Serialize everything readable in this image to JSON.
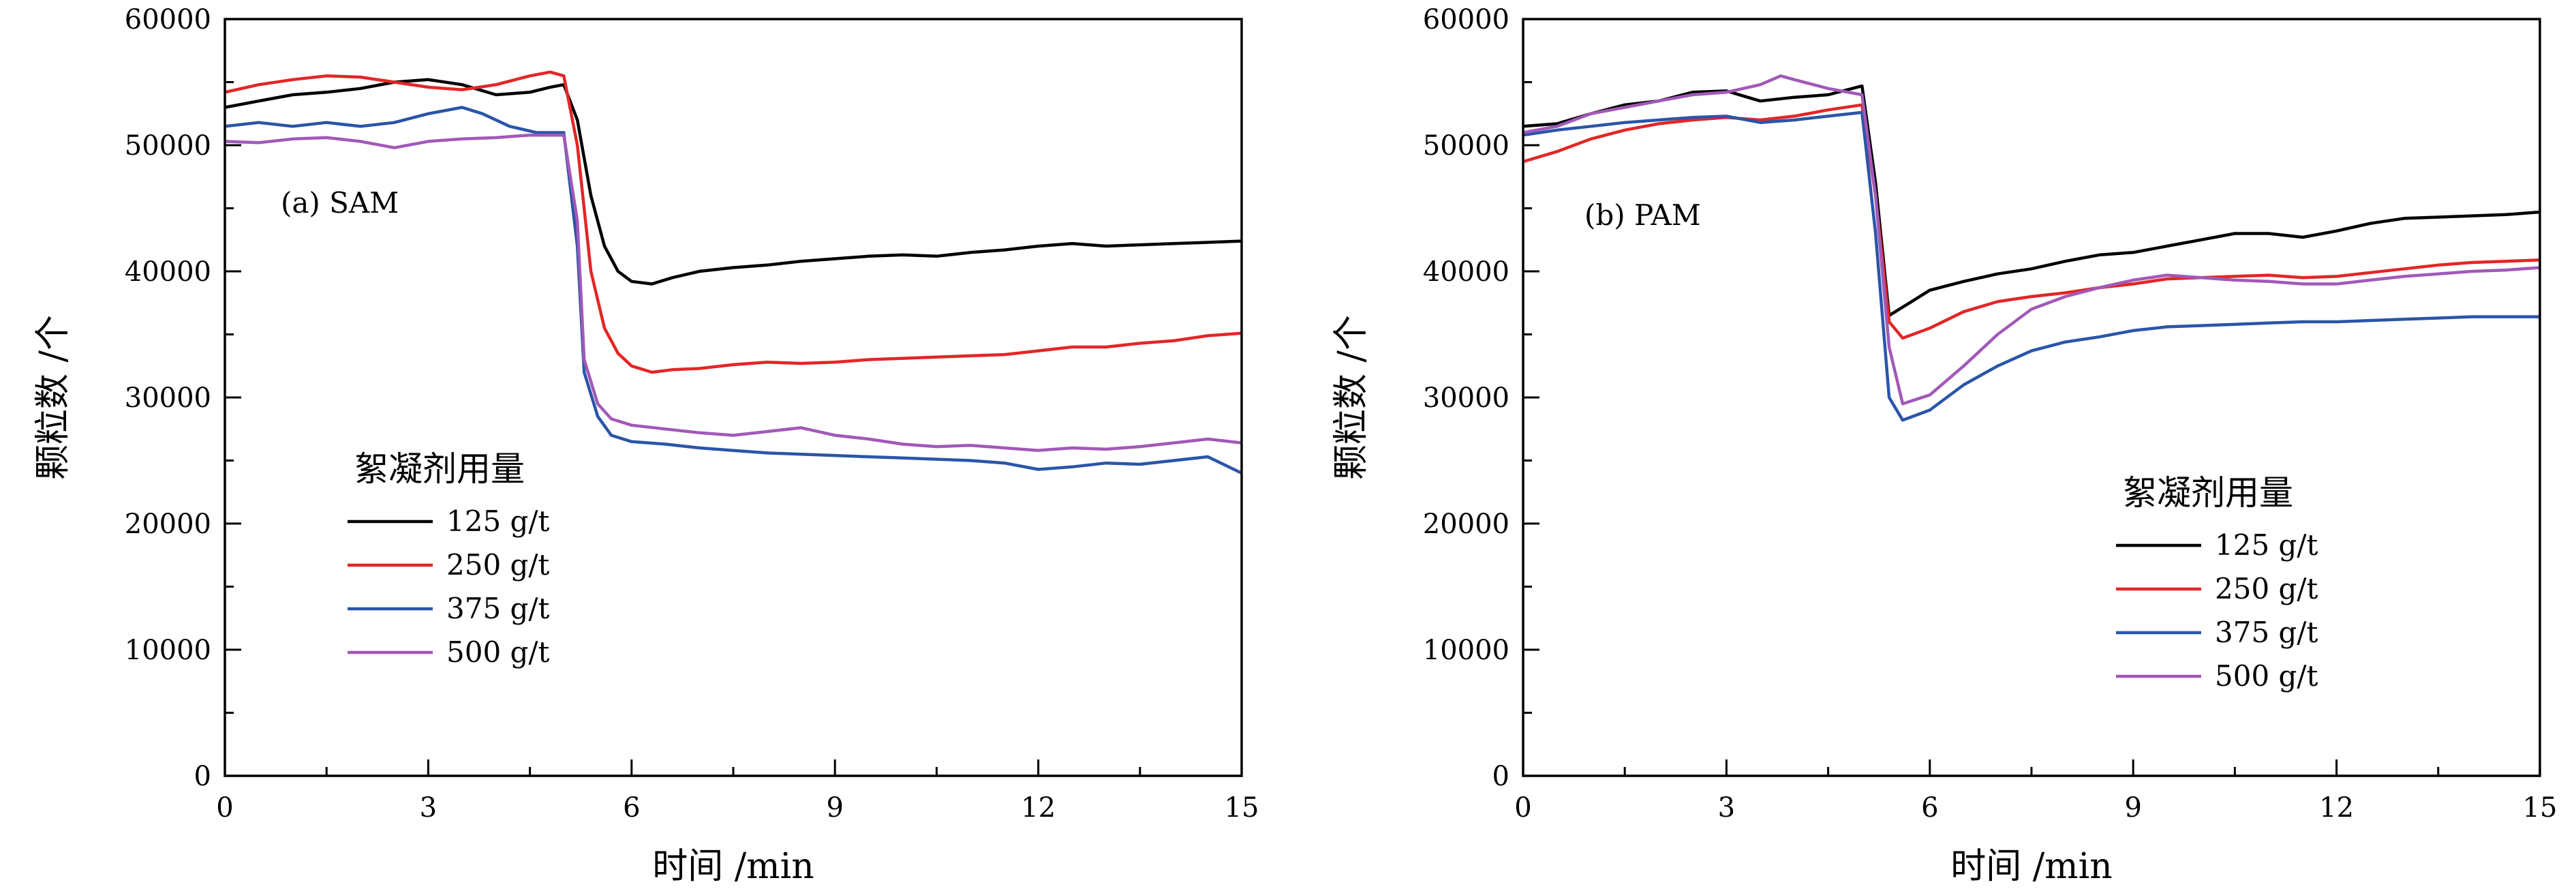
{
  "chart_data": [
    {
      "type": "line",
      "panel_label": "(a) SAM",
      "xlabel": "时间 /min",
      "ylabel": "颗粒数 /个",
      "xlim": [
        0,
        15
      ],
      "ylim": [
        0,
        60000
      ],
      "xticks": [
        0,
        3,
        6,
        9,
        12,
        15
      ],
      "yticks": [
        0,
        10000,
        20000,
        30000,
        40000,
        50000,
        60000
      ],
      "grid": false,
      "legend_title": "絮凝剂用量",
      "legend_position": "lower-left",
      "series": [
        {
          "name": "125 g/t",
          "color": "#000000",
          "x": [
            0,
            0.5,
            1,
            1.5,
            2,
            2.5,
            3,
            3.5,
            4,
            4.5,
            4.8,
            5.0,
            5.2,
            5.4,
            5.6,
            5.8,
            6.0,
            6.3,
            6.6,
            7,
            7.5,
            8,
            8.5,
            9,
            9.5,
            10,
            10.5,
            11,
            11.5,
            12,
            12.5,
            13,
            13.5,
            14,
            14.5,
            15
          ],
          "y": [
            53000,
            53500,
            54000,
            54200,
            54500,
            55000,
            55200,
            54800,
            54000,
            54200,
            54600,
            54800,
            52000,
            46000,
            42000,
            40000,
            39200,
            39000,
            39500,
            40000,
            40300,
            40500,
            40800,
            41000,
            41200,
            41300,
            41200,
            41500,
            41700,
            42000,
            42200,
            42000,
            42100,
            42200,
            42300,
            42400
          ]
        },
        {
          "name": "250 g/t",
          "color": "#e32626",
          "x": [
            0,
            0.5,
            1,
            1.5,
            2,
            2.5,
            3,
            3.5,
            4,
            4.5,
            4.8,
            5.0,
            5.2,
            5.4,
            5.6,
            5.8,
            6.0,
            6.3,
            6.6,
            7,
            7.5,
            8,
            8.5,
            9,
            9.5,
            10,
            10.5,
            11,
            11.5,
            12,
            12.5,
            13,
            13.5,
            14,
            14.5,
            15
          ],
          "y": [
            54200,
            54800,
            55200,
            55500,
            55400,
            55000,
            54600,
            54400,
            54800,
            55500,
            55800,
            55500,
            50000,
            40000,
            35500,
            33500,
            32500,
            32000,
            32200,
            32300,
            32600,
            32800,
            32700,
            32800,
            33000,
            33100,
            33200,
            33300,
            33400,
            33700,
            34000,
            34000,
            34300,
            34500,
            34900,
            35100
          ]
        },
        {
          "name": "375 g/t",
          "color": "#2a55a8",
          "x": [
            0,
            0.5,
            1,
            1.5,
            2,
            2.5,
            3,
            3.5,
            3.8,
            4.2,
            4.6,
            5.0,
            5.2,
            5.3,
            5.5,
            5.7,
            6.0,
            6.5,
            7,
            7.5,
            8,
            8.5,
            9,
            9.5,
            10,
            10.5,
            11,
            11.5,
            12,
            12.5,
            13,
            13.5,
            14,
            14.5,
            15
          ],
          "y": [
            51500,
            51800,
            51500,
            51800,
            51500,
            51800,
            52500,
            53000,
            52500,
            51500,
            51000,
            51000,
            42000,
            32000,
            28500,
            27000,
            26500,
            26300,
            26000,
            25800,
            25600,
            25500,
            25400,
            25300,
            25200,
            25100,
            25000,
            24800,
            24300,
            24500,
            24800,
            24700,
            25000,
            25300,
            24000
          ]
        },
        {
          "name": "500 g/t",
          "color": "#a159b8",
          "x": [
            0,
            0.5,
            1,
            1.5,
            2,
            2.5,
            3,
            3.5,
            4,
            4.5,
            5.0,
            5.2,
            5.3,
            5.5,
            5.7,
            6.0,
            6.5,
            7,
            7.5,
            8,
            8.5,
            9,
            9.5,
            10,
            10.5,
            11,
            11.5,
            12,
            12.5,
            13,
            13.5,
            14,
            14.5,
            15
          ],
          "y": [
            50300,
            50200,
            50500,
            50600,
            50300,
            49800,
            50300,
            50500,
            50600,
            50800,
            50800,
            44000,
            33000,
            29500,
            28300,
            27800,
            27500,
            27200,
            27000,
            27300,
            27600,
            27000,
            26700,
            26300,
            26100,
            26200,
            26000,
            25800,
            26000,
            25900,
            26100,
            26400,
            26700,
            26400
          ]
        }
      ]
    },
    {
      "type": "line",
      "panel_label": "(b) PAM",
      "xlabel": "时间 /min",
      "ylabel": "颗粒数 /个",
      "xlim": [
        0,
        15
      ],
      "ylim": [
        0,
        60000
      ],
      "xticks": [
        0,
        3,
        6,
        9,
        12,
        15
      ],
      "yticks": [
        0,
        10000,
        20000,
        30000,
        40000,
        50000,
        60000
      ],
      "grid": false,
      "legend_title": "絮凝剂用量",
      "legend_position": "lower-right",
      "series": [
        {
          "name": "125 g/t",
          "color": "#000000",
          "x": [
            0,
            0.5,
            1,
            1.5,
            2,
            2.5,
            3,
            3.5,
            4,
            4.5,
            5.0,
            5.2,
            5.4,
            5.7,
            6.0,
            6.5,
            7,
            7.5,
            8,
            8.5,
            9,
            9.5,
            10,
            10.5,
            11,
            11.5,
            12,
            12.5,
            13,
            13.5,
            14,
            14.5,
            15
          ],
          "y": [
            51500,
            51700,
            52500,
            53200,
            53500,
            54200,
            54300,
            53500,
            53800,
            54000,
            54700,
            47000,
            36500,
            37500,
            38500,
            39200,
            39800,
            40200,
            40800,
            41300,
            41500,
            42000,
            42500,
            43000,
            43000,
            42700,
            43200,
            43800,
            44200,
            44300,
            44400,
            44500,
            44700
          ]
        },
        {
          "name": "250 g/t",
          "color": "#e32626",
          "x": [
            0,
            0.5,
            1,
            1.5,
            2,
            2.5,
            3,
            3.5,
            4,
            4.5,
            5.0,
            5.2,
            5.4,
            5.6,
            6.0,
            6.5,
            7,
            7.5,
            8,
            8.5,
            9,
            9.5,
            10,
            10.5,
            11,
            11.5,
            12,
            12.5,
            13,
            13.5,
            14,
            14.5,
            15
          ],
          "y": [
            48700,
            49500,
            50500,
            51200,
            51700,
            52000,
            52200,
            52000,
            52300,
            52800,
            53200,
            46000,
            36000,
            34700,
            35500,
            36800,
            37600,
            38000,
            38300,
            38700,
            39000,
            39400,
            39500,
            39600,
            39700,
            39500,
            39600,
            39900,
            40200,
            40500,
            40700,
            40800,
            40900
          ]
        },
        {
          "name": "375 g/t",
          "color": "#2a55a8",
          "x": [
            0,
            0.5,
            1,
            1.5,
            2,
            2.5,
            3,
            3.5,
            4,
            4.5,
            5.0,
            5.2,
            5.4,
            5.6,
            6.0,
            6.5,
            7,
            7.5,
            8,
            8.5,
            9,
            9.5,
            10,
            10.5,
            11,
            11.5,
            12,
            12.5,
            13,
            13.5,
            14,
            14.5,
            15
          ],
          "y": [
            50800,
            51200,
            51500,
            51800,
            52000,
            52200,
            52300,
            51800,
            52000,
            52300,
            52600,
            43000,
            30000,
            28200,
            29000,
            31000,
            32500,
            33700,
            34400,
            34800,
            35300,
            35600,
            35700,
            35800,
            35900,
            36000,
            36000,
            36100,
            36200,
            36300,
            36400,
            36400,
            36400
          ]
        },
        {
          "name": "500 g/t",
          "color": "#a159b8",
          "x": [
            0,
            0.5,
            1,
            1.5,
            2,
            2.5,
            3,
            3.5,
            3.8,
            4.0,
            4.5,
            5.0,
            5.2,
            5.4,
            5.6,
            6.0,
            6.5,
            7,
            7.5,
            8,
            8.5,
            9,
            9.5,
            10,
            10.5,
            11,
            11.5,
            12,
            12.5,
            13,
            13.5,
            14,
            14.5,
            15
          ],
          "y": [
            51000,
            51500,
            52500,
            53000,
            53500,
            54000,
            54200,
            54800,
            55500,
            55200,
            54500,
            54000,
            46000,
            34000,
            29500,
            30200,
            32500,
            35000,
            37000,
            38000,
            38700,
            39300,
            39700,
            39500,
            39300,
            39200,
            39000,
            39000,
            39300,
            39600,
            39800,
            40000,
            40100,
            40300
          ]
        }
      ]
    }
  ]
}
